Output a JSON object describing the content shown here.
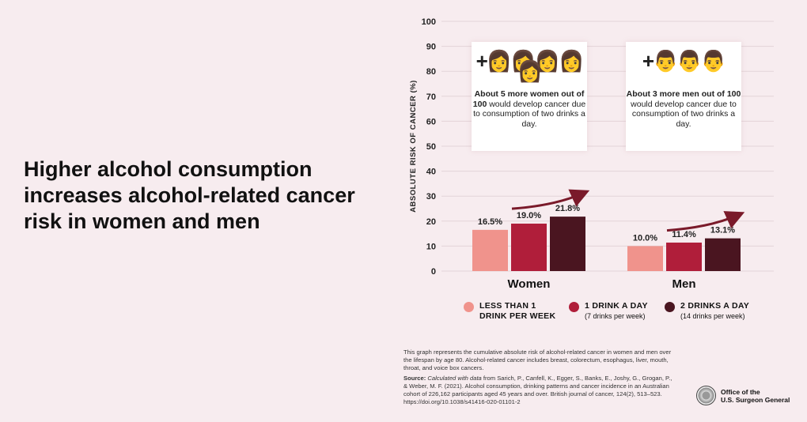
{
  "headline": "Higher alcohol consumption increases alcohol-related cancer risk in women and men",
  "chart_data": {
    "type": "bar",
    "ylabel": "ABSOLUTE RISK OF CANCER (%)",
    "ylim": [
      0,
      100
    ],
    "yticks": [
      0,
      10,
      20,
      30,
      40,
      50,
      60,
      70,
      80,
      90,
      100
    ],
    "categories": [
      "Women",
      "Men"
    ],
    "series": [
      {
        "name": "LESS THAN 1 DRINK PER WEEK",
        "values": [
          16.5,
          10.0
        ],
        "labels": [
          "16.5%",
          "10.0%"
        ],
        "color": "#f0938c"
      },
      {
        "name": "1 DRINK A DAY",
        "sub": "(7 drinks per week)",
        "values": [
          19.0,
          11.4
        ],
        "labels": [
          "19.0%",
          "11.4%"
        ],
        "color": "#b01e3a"
      },
      {
        "name": "2 DRINKS A DAY",
        "sub": "(14 drinks per week)",
        "values": [
          21.8,
          13.1
        ],
        "labels": [
          "21.8%",
          "13.1%"
        ],
        "color": "#4a1520"
      }
    ],
    "grid": true,
    "legend": "bottom",
    "annotations": [
      {
        "icon": "plus-five-women-icons",
        "bold": "About 5 more women out of 100",
        "rest": " would develop cancer due to consumption of two drinks a day."
      },
      {
        "icon": "plus-three-men-icons",
        "bold": "About 3 more men out of 100",
        "rest": " would develop cancer due to consumption of two drinks a day."
      }
    ]
  },
  "notes": {
    "description": "This graph represents the cumulative absolute risk of alcohol-related cancer in women and men over the lifespan by age 80. Alcohol-related cancer includes breast, colorectum, esophagus, liver, mouth, throat, and voice box cancers.",
    "source_label": "Source:",
    "source_italic": " Calculated with data",
    "source_text": " from Sarich, P., Canfell, K., Egger, S., Banks, E., Joshy, G., Grogan, P., & Weber, M. F. (2021). Alcohol consumption, drinking patterns and cancer incidence in an Australian cohort of 226,162 participants aged 45 years and over. British journal of cancer, 124(2), 513–523. https://doi.org/10.1038/s41416-020-01101-2"
  },
  "logo": {
    "line1": "Office of the",
    "line2": "U.S. Surgeon General"
  },
  "colors": {
    "background": "#f7ecef",
    "arrow": "#7a1a2a"
  }
}
